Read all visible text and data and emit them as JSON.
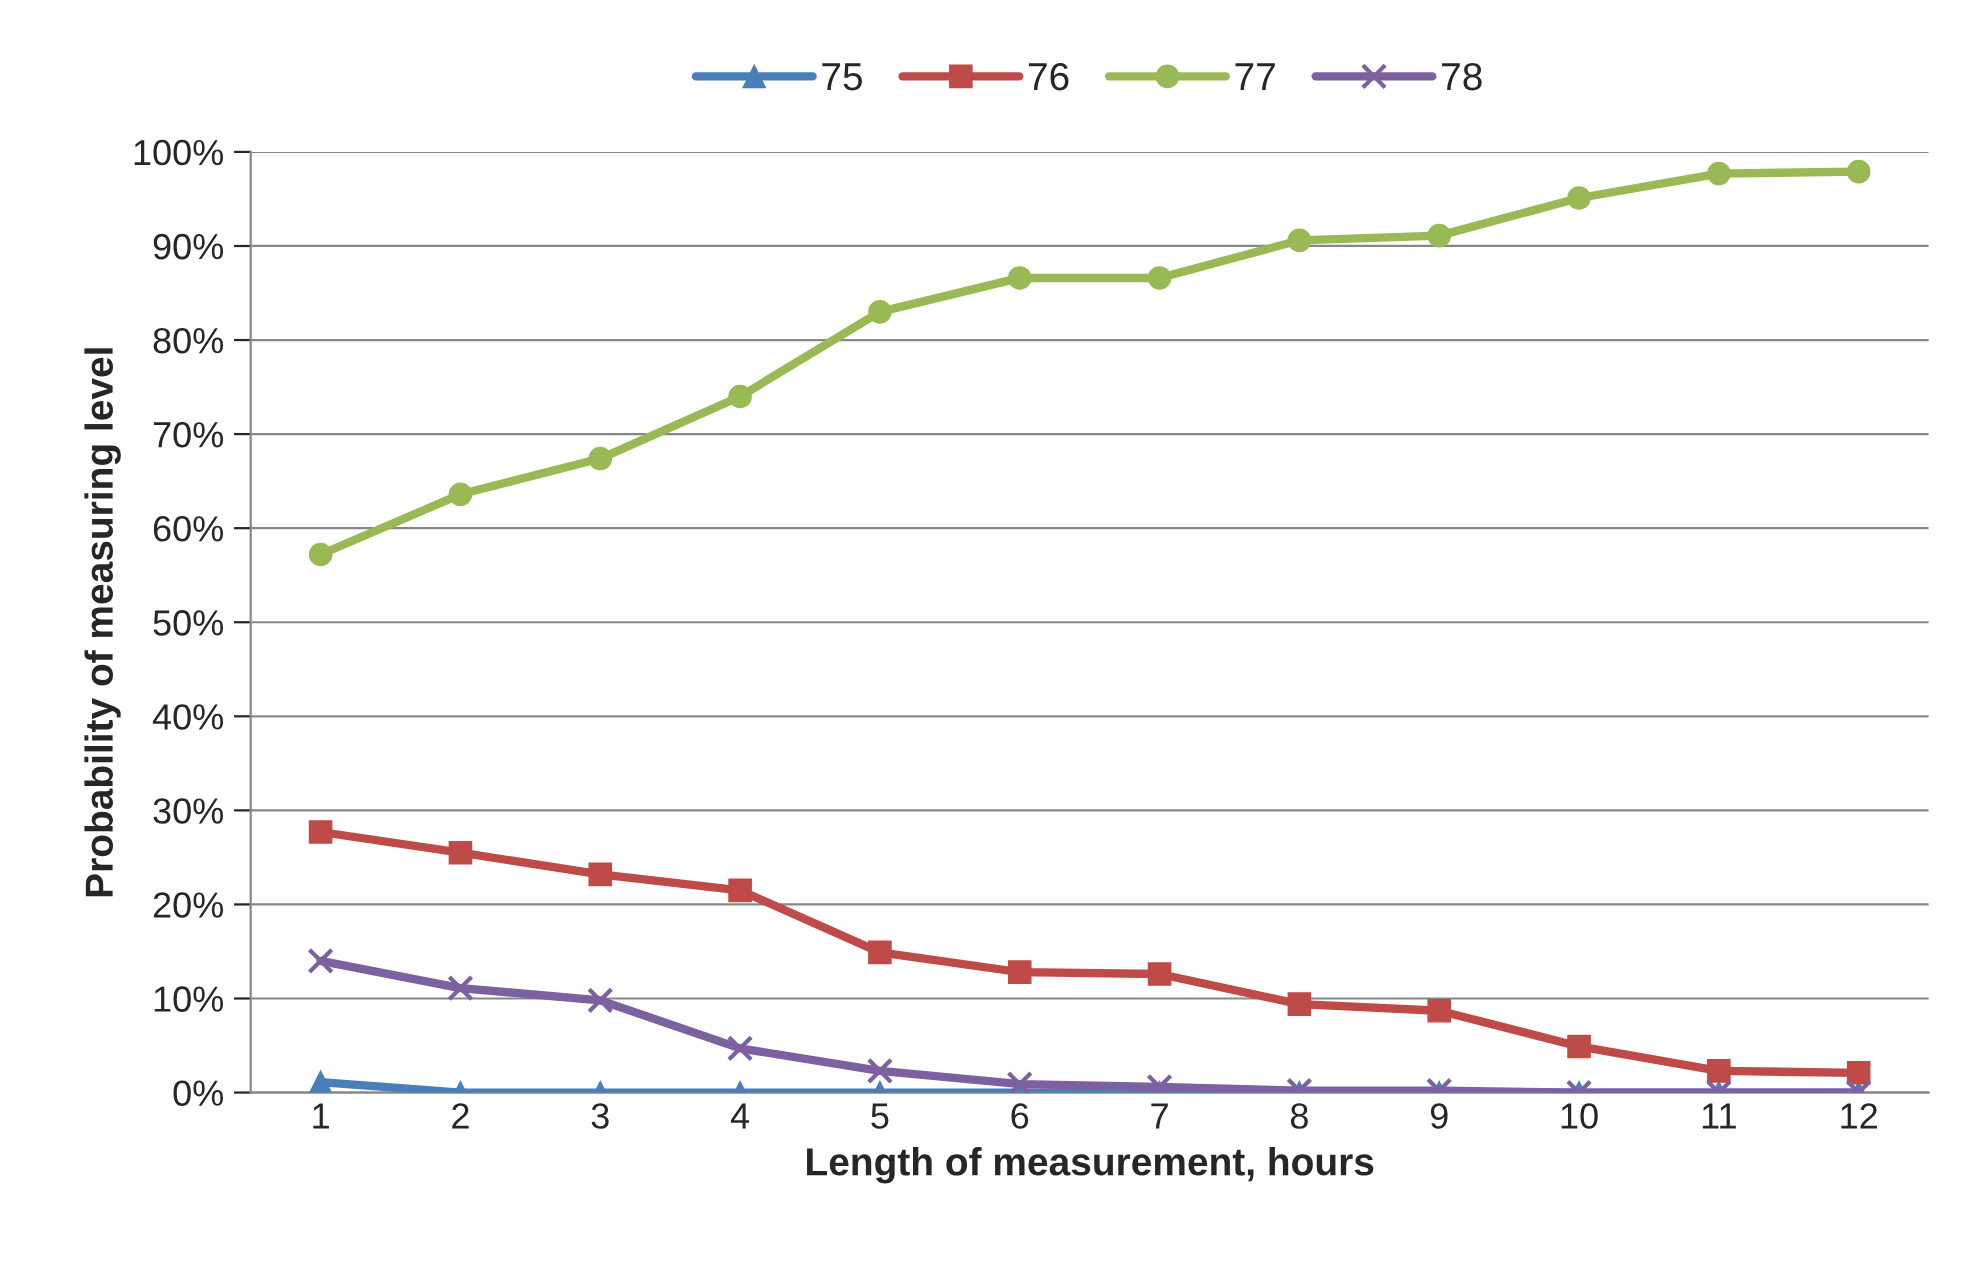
{
  "chart_data": {
    "type": "line",
    "xlabel": "Length of measurement, hours",
    "ylabel": "Probability of measuring level",
    "categories": [
      "1",
      "2",
      "3",
      "4",
      "5",
      "6",
      "7",
      "8",
      "9",
      "10",
      "11",
      "12"
    ],
    "series": [
      {
        "name": "75",
        "color": "#4a7ebb",
        "marker": "triangle",
        "values": [
          1.1,
          0,
          0,
          0,
          0,
          0,
          0,
          0,
          0,
          0,
          0,
          0
        ]
      },
      {
        "name": "76",
        "color": "#be4b48",
        "marker": "square",
        "values": [
          27.7,
          25.5,
          23.2,
          21.5,
          14.9,
          12.8,
          12.6,
          9.4,
          8.7,
          4.9,
          2.3,
          2.1
        ]
      },
      {
        "name": "77",
        "color": "#98b954",
        "marker": "circle",
        "values": [
          57.2,
          63.6,
          67.4,
          74.0,
          83.0,
          86.6,
          86.6,
          90.6,
          91.1,
          95.1,
          97.7,
          97.9
        ]
      },
      {
        "name": "78",
        "color": "#7d60a0",
        "marker": "cross",
        "values": [
          14.0,
          11.1,
          9.8,
          4.7,
          2.3,
          0.9,
          0.6,
          0.2,
          0.2,
          0,
          0,
          0
        ]
      }
    ],
    "ylim": [
      0,
      100
    ],
    "yticks": [
      {
        "value": 0,
        "label": "0%"
      },
      {
        "value": 10,
        "label": "10%"
      },
      {
        "value": 20,
        "label": "20%"
      },
      {
        "value": 30,
        "label": "30%"
      },
      {
        "value": 40,
        "label": "40%"
      },
      {
        "value": 50,
        "label": "50%"
      },
      {
        "value": 60,
        "label": "60%"
      },
      {
        "value": 70,
        "label": "70%"
      },
      {
        "value": 80,
        "label": "80%"
      },
      {
        "value": 90,
        "label": "90%"
      },
      {
        "value": 100,
        "label": "100%"
      }
    ],
    "grid": "y",
    "legend": "top",
    "line_style": "solid"
  }
}
